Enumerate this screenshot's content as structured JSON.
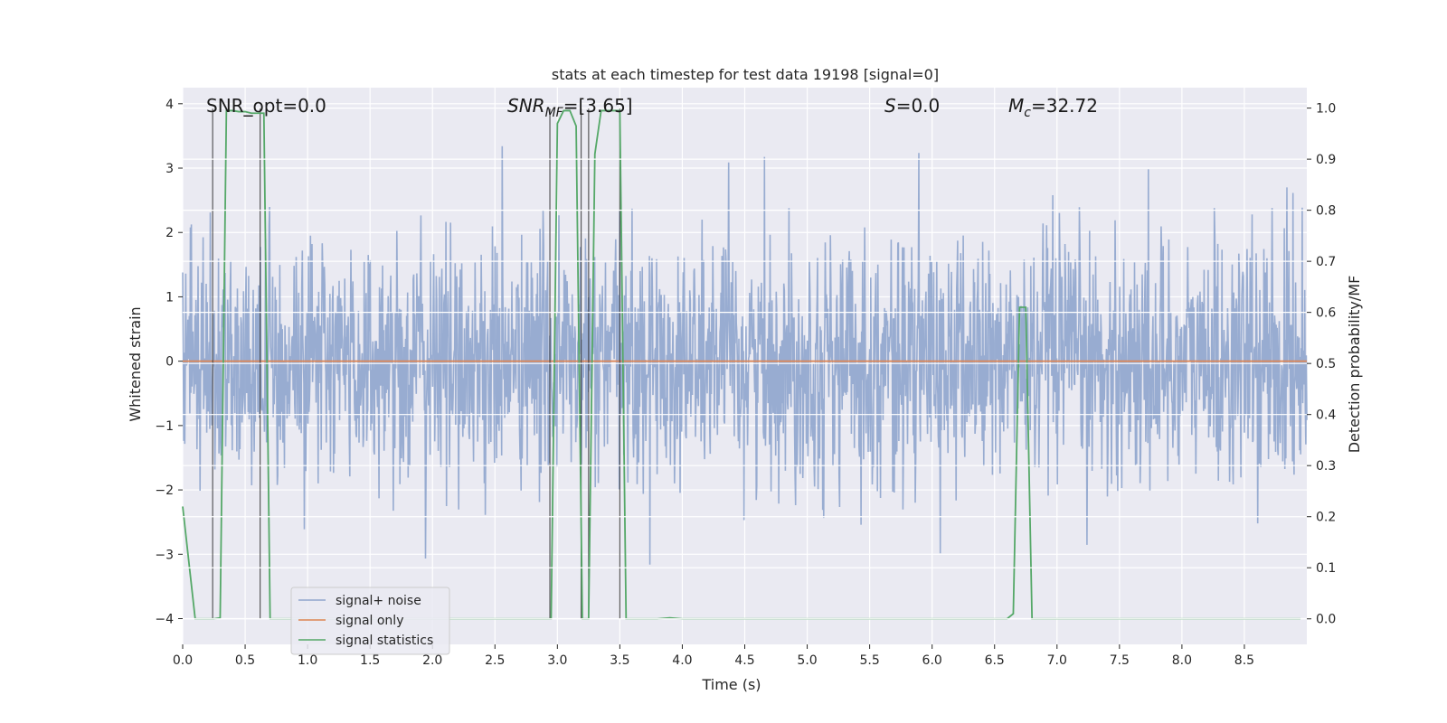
{
  "chart_data": {
    "type": "line",
    "title": "stats at each timestep for test data 19198 [signal=0]",
    "xlabel": "Time (s)",
    "ylabel": "Whitened strain",
    "y2label": "Detection probability/MF",
    "xlim": [
      0,
      9.0
    ],
    "ylim": [
      -4.4,
      4.25
    ],
    "y2lim": [
      -0.05,
      1.04
    ],
    "x_ticks": [
      0.0,
      0.5,
      1.0,
      1.5,
      2.0,
      2.5,
      3.0,
      3.5,
      4.0,
      4.5,
      5.0,
      5.5,
      6.0,
      6.5,
      7.0,
      7.5,
      8.0,
      8.5
    ],
    "x_tick_labels": [
      "0.0",
      "0.5",
      "1.0",
      "1.5",
      "2.0",
      "2.5",
      "3.0",
      "3.5",
      "4.0",
      "4.5",
      "5.0",
      "5.5",
      "6.0",
      "6.5",
      "7.0",
      "7.5",
      "8.0",
      "8.5"
    ],
    "y_ticks": [
      -4,
      -3,
      -2,
      -1,
      0,
      1,
      2,
      3,
      4
    ],
    "y_tick_labels": [
      "−4",
      "−3",
      "−2",
      "−1",
      "0",
      "1",
      "2",
      "3",
      "4"
    ],
    "y2_ticks": [
      0.0,
      0.1,
      0.2,
      0.3,
      0.4,
      0.5,
      0.6,
      0.7,
      0.8,
      0.9,
      1.0
    ],
    "y2_tick_labels": [
      "0.0",
      "0.1",
      "0.2",
      "0.3",
      "0.4",
      "0.5",
      "0.6",
      "0.7",
      "0.8",
      "0.9",
      "1.0"
    ],
    "grid": true,
    "legend_position": "lower-left",
    "annotations": {
      "snr_opt": "SNR_opt=0.0",
      "snr_mf_sym": "SNR",
      "snr_mf_sub": "MF",
      "snr_mf_val": "=[3.65]",
      "s_sym": "S",
      "s_val": "=0.0",
      "mc_sym": "M",
      "mc_sub": "c",
      "mc_val": "=32.72"
    },
    "series": [
      {
        "name": "signal+ noise",
        "color": "#8fa5cd",
        "noise_std": 0.95,
        "duration_s": 9.0,
        "samples": 2200
      },
      {
        "name": "signal only",
        "color": "#dd8452",
        "x": [
          0.0,
          9.0
        ],
        "y": [
          0.0,
          0.0
        ]
      },
      {
        "name": "signal statistics",
        "color": "#55a868",
        "axis": "right",
        "x": [
          0.0,
          0.05,
          0.1,
          0.15,
          0.2,
          0.25,
          0.3,
          0.35,
          0.4,
          0.45,
          0.5,
          0.55,
          0.6,
          0.65,
          0.7,
          0.8,
          0.9,
          1.0,
          1.5,
          2.0,
          2.5,
          2.95,
          3.0,
          3.05,
          3.1,
          3.15,
          3.2,
          3.25,
          3.3,
          3.35,
          3.4,
          3.45,
          3.5,
          3.55,
          3.6,
          3.65,
          3.7,
          3.8,
          3.9,
          4.0,
          4.5,
          5.0,
          5.5,
          6.0,
          6.5,
          6.6,
          6.65,
          6.7,
          6.75,
          6.8,
          6.85,
          6.9,
          7.0,
          7.5,
          8.0,
          8.5,
          8.95
        ],
        "y": [
          0.22,
          0.11,
          0.0,
          0.0,
          0.0,
          0.0,
          0.002,
          0.995,
          0.995,
          0.993,
          0.993,
          0.99,
          0.99,
          0.99,
          0.0,
          0.0,
          0.0,
          0.0,
          0.0,
          0.0,
          0.0,
          0.0,
          0.97,
          0.995,
          0.995,
          0.965,
          0.0,
          0.0,
          0.91,
          0.995,
          0.995,
          0.995,
          0.995,
          0.0,
          0.0,
          0.0,
          0.0,
          0.0,
          0.002,
          0.0,
          0.0,
          0.0,
          0.0,
          0.0,
          0.0,
          0.0,
          0.01,
          0.61,
          0.61,
          0.0,
          0.0,
          0.0,
          0.0,
          0.0,
          0.0,
          0.0,
          0.0
        ]
      }
    ],
    "vertical_lines_x": [
      0.24,
      0.62,
      2.94,
      3.19,
      3.25,
      3.5
    ]
  }
}
